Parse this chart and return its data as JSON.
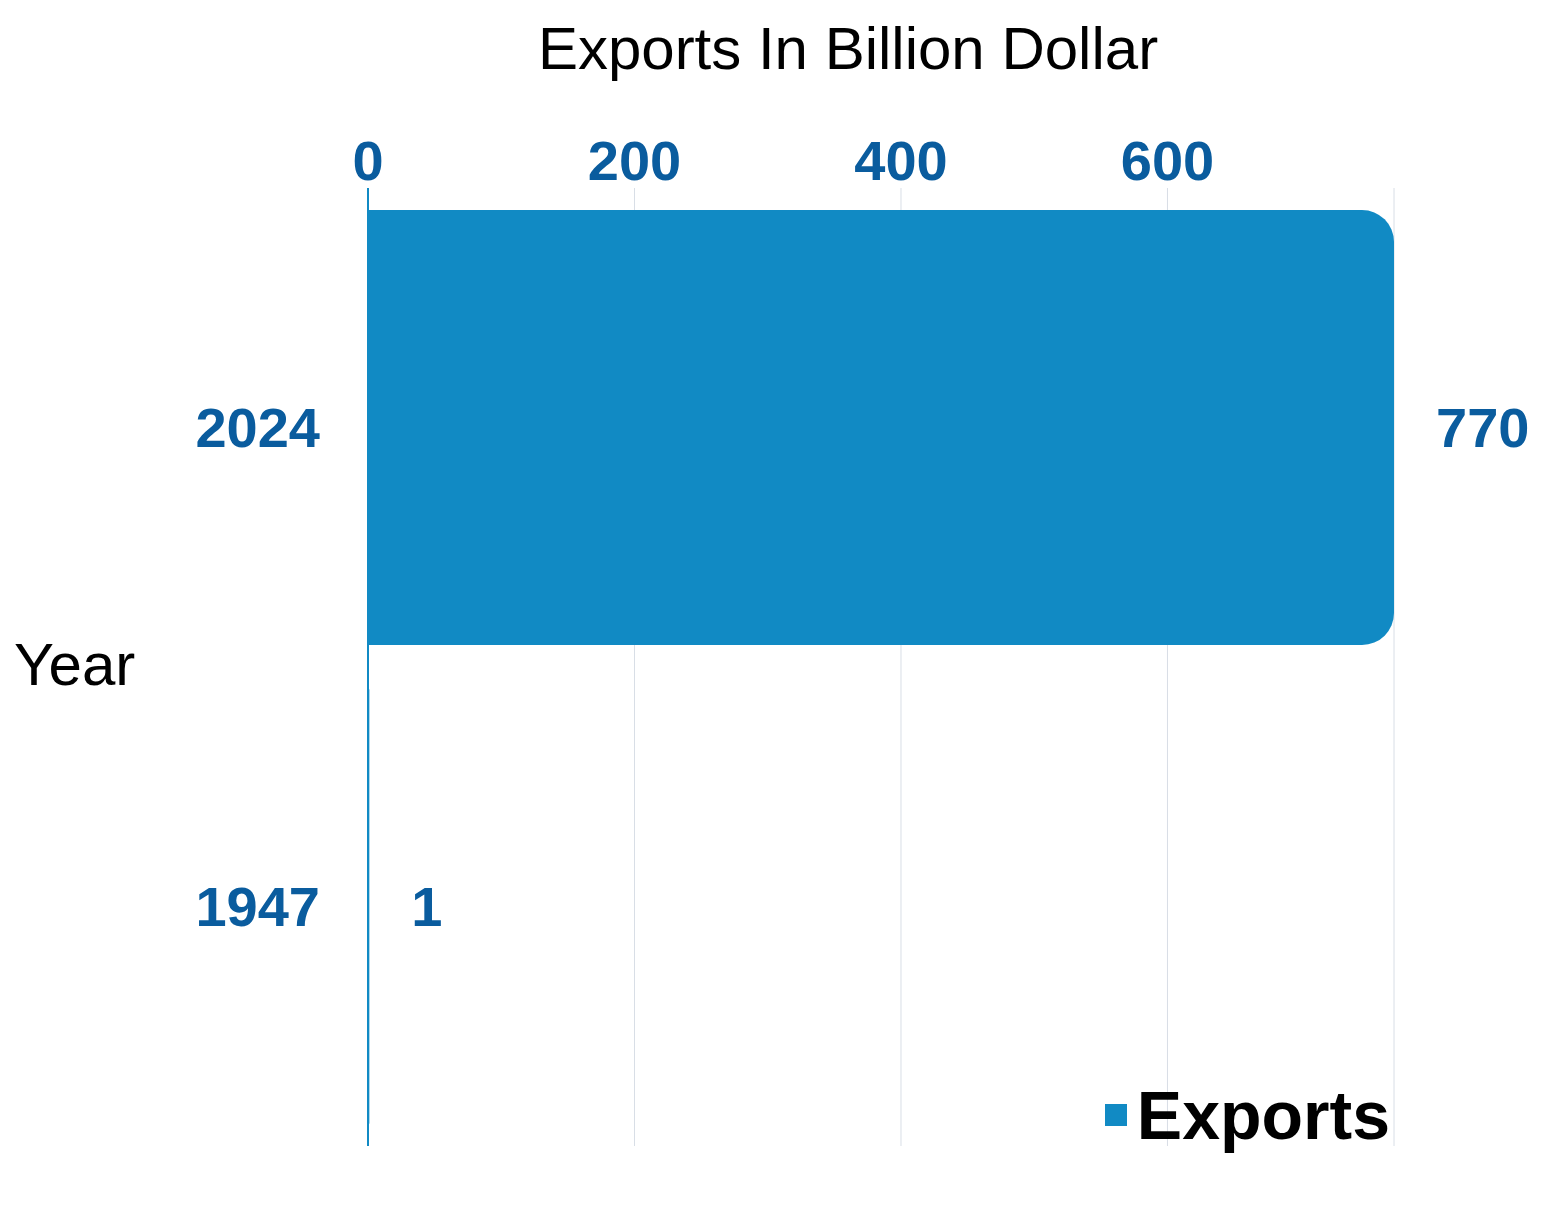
{
  "chart_data": {
    "type": "bar",
    "orientation": "horizontal",
    "xlabel": "Exports In Billion Dollar",
    "ylabel": "Year",
    "categories": [
      "2024",
      "1947"
    ],
    "series": [
      {
        "name": "Exports",
        "color": "#118ac4",
        "values": [
          770,
          1
        ]
      }
    ],
    "xlim": [
      0,
      770
    ],
    "xticks": [
      0,
      200,
      400,
      600
    ],
    "grid": "x",
    "data_labels": true,
    "legend": "bottom right"
  }
}
